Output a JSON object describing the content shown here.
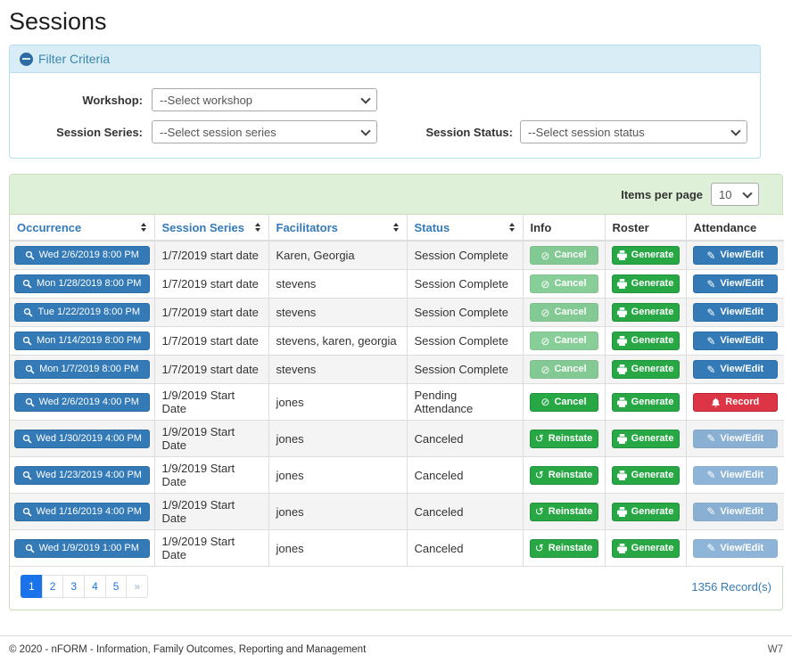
{
  "page": {
    "title": "Sessions"
  },
  "filter": {
    "header": "Filter Criteria",
    "collapse_icon": "minus-circle",
    "workshop": {
      "label": "Workshop:",
      "value": "--Select workshop"
    },
    "session_series": {
      "label": "Session Series:",
      "value": "--Select session series"
    },
    "session_status": {
      "label": "Session Status:",
      "value": "--Select session status"
    }
  },
  "table": {
    "items_per_page_label": "Items per page",
    "items_per_page_value": "10",
    "columns": [
      {
        "label": "Occurrence",
        "sortable": true
      },
      {
        "label": "Session Series",
        "sortable": true
      },
      {
        "label": "Facilitators",
        "sortable": true
      },
      {
        "label": "Status",
        "sortable": true
      },
      {
        "label": "Info",
        "sortable": false
      },
      {
        "label": "Roster",
        "sortable": false
      },
      {
        "label": "Attendance",
        "sortable": false
      }
    ],
    "rows": [
      {
        "occurrence": "Wed 2/6/2019 8:00 PM",
        "session_series": "1/7/2019 start date",
        "facilitators": "Karen, Georgia",
        "status": "Session Complete",
        "info": {
          "label": "Cancel",
          "icon": "ban",
          "variant": "success",
          "disabled": true
        },
        "roster": {
          "label": "Generate",
          "icon": "print",
          "variant": "success",
          "disabled": false
        },
        "attendance": {
          "label": "View/Edit",
          "icon": "pencil",
          "variant": "primary",
          "disabled": false
        }
      },
      {
        "occurrence": "Mon 1/28/2019 8:00 PM",
        "session_series": "1/7/2019 start date",
        "facilitators": "stevens",
        "status": "Session Complete",
        "info": {
          "label": "Cancel",
          "icon": "ban",
          "variant": "success",
          "disabled": true
        },
        "roster": {
          "label": "Generate",
          "icon": "print",
          "variant": "success",
          "disabled": false
        },
        "attendance": {
          "label": "View/Edit",
          "icon": "pencil",
          "variant": "primary",
          "disabled": false
        }
      },
      {
        "occurrence": "Tue 1/22/2019 8:00 PM",
        "session_series": "1/7/2019 start date",
        "facilitators": "stevens",
        "status": "Session Complete",
        "info": {
          "label": "Cancel",
          "icon": "ban",
          "variant": "success",
          "disabled": true
        },
        "roster": {
          "label": "Generate",
          "icon": "print",
          "variant": "success",
          "disabled": false
        },
        "attendance": {
          "label": "View/Edit",
          "icon": "pencil",
          "variant": "primary",
          "disabled": false
        }
      },
      {
        "occurrence": "Mon 1/14/2019 8:00 PM",
        "session_series": "1/7/2019 start date",
        "facilitators": "stevens, karen, georgia",
        "status": "Session Complete",
        "info": {
          "label": "Cancel",
          "icon": "ban",
          "variant": "success",
          "disabled": true
        },
        "roster": {
          "label": "Generate",
          "icon": "print",
          "variant": "success",
          "disabled": false
        },
        "attendance": {
          "label": "View/Edit",
          "icon": "pencil",
          "variant": "primary",
          "disabled": false
        }
      },
      {
        "occurrence": "Mon 1/7/2019 8:00 PM",
        "session_series": "1/7/2019 start date",
        "facilitators": "stevens",
        "status": "Session Complete",
        "info": {
          "label": "Cancel",
          "icon": "ban",
          "variant": "success",
          "disabled": true
        },
        "roster": {
          "label": "Generate",
          "icon": "print",
          "variant": "success",
          "disabled": false
        },
        "attendance": {
          "label": "View/Edit",
          "icon": "pencil",
          "variant": "primary",
          "disabled": false
        }
      },
      {
        "occurrence": "Wed 2/6/2019 4:00 PM",
        "session_series": "1/9/2019 Start Date",
        "facilitators": "jones",
        "status": "Pending Attendance",
        "info": {
          "label": "Cancel",
          "icon": "ban",
          "variant": "success",
          "disabled": false
        },
        "roster": {
          "label": "Generate",
          "icon": "print",
          "variant": "success",
          "disabled": false
        },
        "attendance": {
          "label": "Record",
          "icon": "bell",
          "variant": "danger",
          "disabled": false
        }
      },
      {
        "occurrence": "Wed 1/30/2019 4:00 PM",
        "session_series": "1/9/2019 Start Date",
        "facilitators": "jones",
        "status": "Canceled",
        "info": {
          "label": "Reinstate",
          "icon": "undo",
          "variant": "success",
          "disabled": false
        },
        "roster": {
          "label": "Generate",
          "icon": "print",
          "variant": "success",
          "disabled": false
        },
        "attendance": {
          "label": "View/Edit",
          "icon": "pencil",
          "variant": "primary",
          "disabled": true
        }
      },
      {
        "occurrence": "Wed 1/23/2019 4:00 PM",
        "session_series": "1/9/2019 Start Date",
        "facilitators": "jones",
        "status": "Canceled",
        "info": {
          "label": "Reinstate",
          "icon": "undo",
          "variant": "success",
          "disabled": false
        },
        "roster": {
          "label": "Generate",
          "icon": "print",
          "variant": "success",
          "disabled": false
        },
        "attendance": {
          "label": "View/Edit",
          "icon": "pencil",
          "variant": "primary",
          "disabled": true
        }
      },
      {
        "occurrence": "Wed 1/16/2019 4:00 PM",
        "session_series": "1/9/2019 Start Date",
        "facilitators": "jones",
        "status": "Canceled",
        "info": {
          "label": "Reinstate",
          "icon": "undo",
          "variant": "success",
          "disabled": false
        },
        "roster": {
          "label": "Generate",
          "icon": "print",
          "variant": "success",
          "disabled": false
        },
        "attendance": {
          "label": "View/Edit",
          "icon": "pencil",
          "variant": "primary",
          "disabled": true
        }
      },
      {
        "occurrence": "Wed 1/9/2019 1:00 PM",
        "session_series": "1/9/2019 Start Date",
        "facilitators": "jones",
        "status": "Canceled",
        "info": {
          "label": "Reinstate",
          "icon": "undo",
          "variant": "success",
          "disabled": false
        },
        "roster": {
          "label": "Generate",
          "icon": "print",
          "variant": "success",
          "disabled": false
        },
        "attendance": {
          "label": "View/Edit",
          "icon": "pencil",
          "variant": "primary",
          "disabled": true
        }
      }
    ],
    "record_count": "1356 Record(s)"
  },
  "pagination": {
    "pages": [
      "1",
      "2",
      "3",
      "4",
      "5"
    ],
    "active": "1",
    "next_label": "»"
  },
  "colors": {
    "primary_blue": "#337ab7",
    "success_green": "#28a745",
    "danger_red": "#dc3545",
    "pagination_blue": "#1a73e8",
    "filter_header_bg": "#d9edf7",
    "filter_header_text": "#3a87ad",
    "table_heading_bg": "#dff0d8"
  },
  "footer": {
    "copyright": "© 2020 - nFORM - Information, Family Outcomes, Reporting and Management",
    "version": "W7"
  }
}
